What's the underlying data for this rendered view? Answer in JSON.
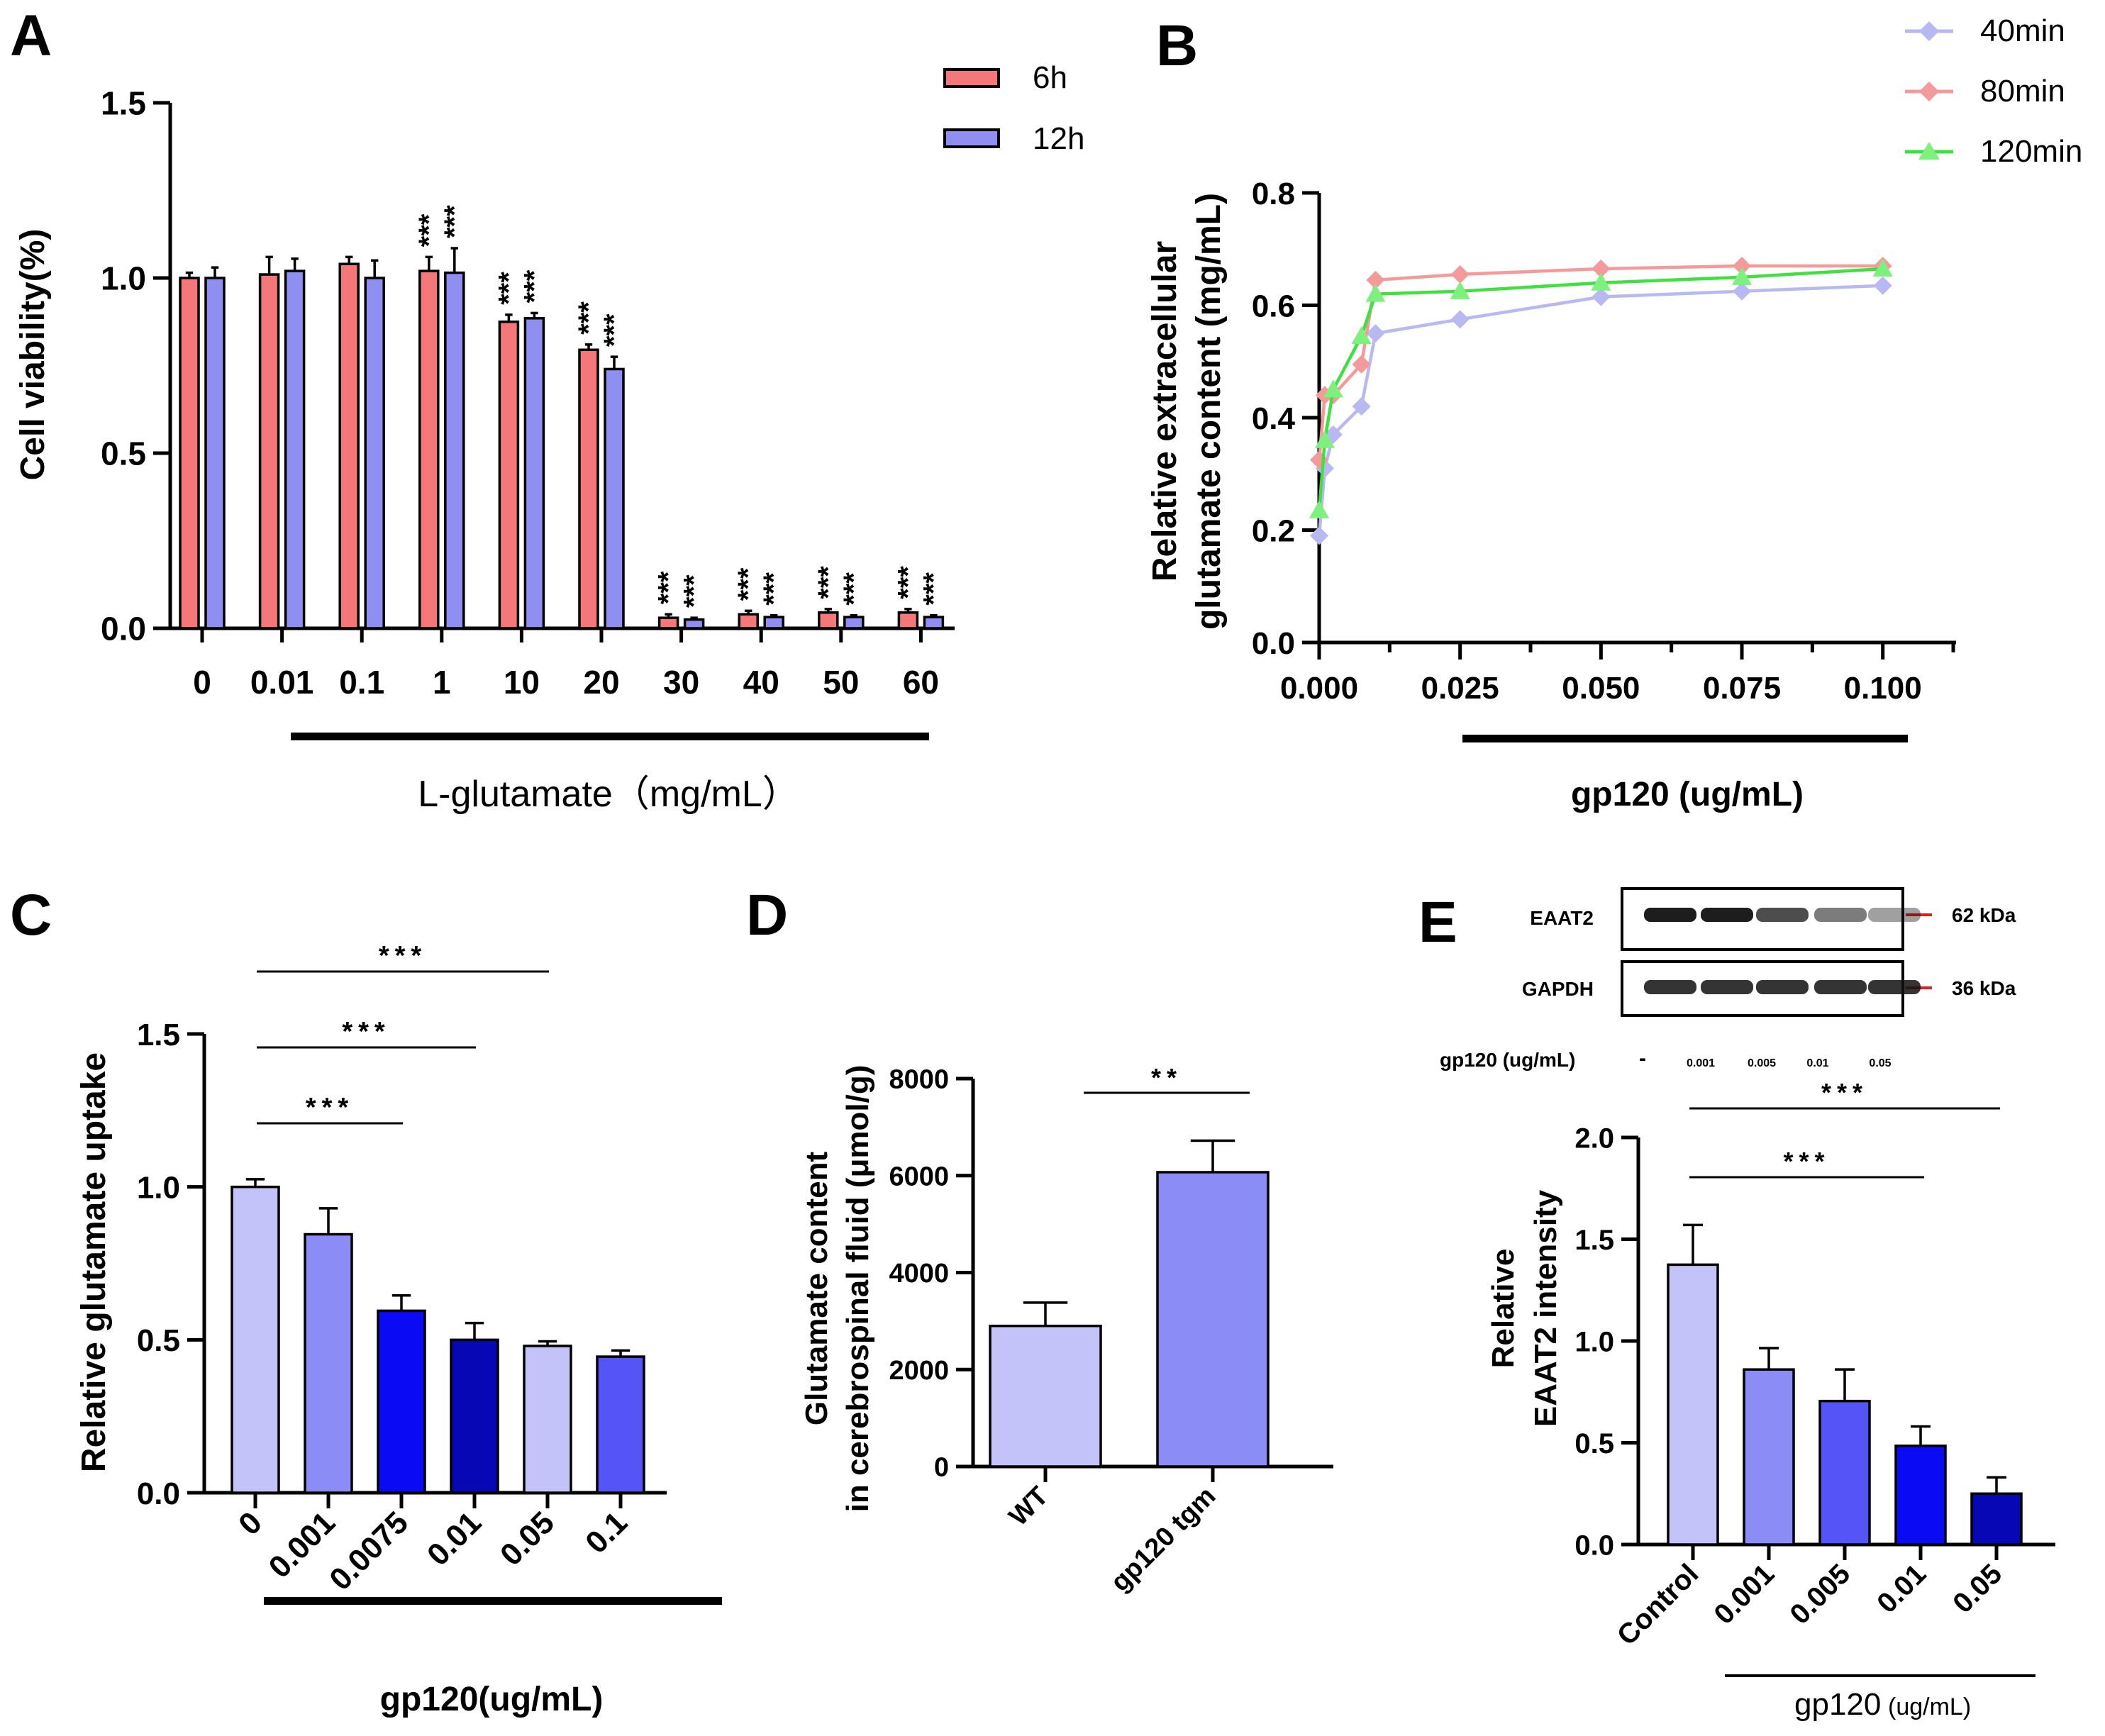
{
  "panels": {
    "A": {
      "label": "A"
    },
    "B": {
      "label": "B"
    },
    "C": {
      "label": "C"
    },
    "D": {
      "label": "D"
    },
    "E": {
      "label": "E"
    }
  },
  "colors": {
    "red": "#f4777a",
    "lavender": "#8f8ff2",
    "lightLav": "#c3c3f9",
    "mid": "#8c8cf7",
    "blue": "#0a0af5",
    "dark": "#0707b5",
    "med": "#5454f7",
    "line40": "#b8b8f2",
    "line80": "#f59a9a",
    "line120": "#3fe03f"
  },
  "chart_data": [
    {
      "id": "A",
      "type": "bar",
      "categories": [
        "0",
        "0.01",
        "0.1",
        "1",
        "10",
        "20",
        "30",
        "40",
        "50",
        "60"
      ],
      "series": [
        {
          "name": "6h",
          "values": [
            1.0,
            1.01,
            1.04,
            1.02,
            0.875,
            0.795,
            0.03,
            0.04,
            0.045,
            0.045
          ],
          "errors": [
            0.015,
            0.05,
            0.02,
            0.04,
            0.02,
            0.015,
            0.01,
            0.01,
            0.01,
            0.01
          ]
        },
        {
          "name": "12h",
          "values": [
            1.0,
            1.02,
            1.0,
            1.015,
            0.885,
            0.74,
            0.025,
            0.032,
            0.032,
            0.032
          ],
          "errors": [
            0.03,
            0.035,
            0.05,
            0.07,
            0.015,
            0.035,
            0.005,
            0.005,
            0.005,
            0.005
          ]
        }
      ],
      "significance": [
        "",
        "",
        "",
        "***",
        "***",
        "***",
        "***",
        "***",
        "***",
        "***"
      ],
      "ylabel": "Cell viability(%)",
      "xlabel": "L-glutamate（mg/mL）",
      "ylim": [
        0,
        1.5
      ],
      "yticks": [
        "0.0",
        "0.5",
        "1.0",
        "1.5"
      ]
    },
    {
      "id": "B",
      "type": "line",
      "x": [
        0.0,
        0.001,
        0.0025,
        0.0075,
        0.01,
        0.025,
        0.05,
        0.075,
        0.1
      ],
      "series": [
        {
          "name": "40min",
          "values": [
            0.19,
            0.31,
            0.37,
            0.42,
            0.55,
            0.575,
            0.615,
            0.625,
            0.635
          ]
        },
        {
          "name": "80min",
          "values": [
            0.325,
            0.44,
            0.44,
            0.495,
            0.645,
            0.655,
            0.665,
            0.67,
            0.67
          ]
        },
        {
          "name": "120min",
          "values": [
            0.235,
            0.36,
            0.45,
            0.545,
            0.62,
            0.625,
            0.64,
            0.65,
            0.665
          ]
        }
      ],
      "ylabel_line1": "Relative extracellular",
      "ylabel_line2": "glutamate content (mg/mL)",
      "xlabel": "gp120 (ug/mL)",
      "xlim": [
        0,
        0.113
      ],
      "ylim": [
        0,
        0.8
      ],
      "xticks": [
        "0.000",
        "0.025",
        "0.050",
        "0.075",
        "0.100"
      ],
      "yticks": [
        "0.0",
        "0.2",
        "0.4",
        "0.6",
        "0.8"
      ]
    },
    {
      "id": "C",
      "type": "bar",
      "categories": [
        "0",
        "0.001",
        "0.0075",
        "0.01",
        "0.05",
        "0.1"
      ],
      "values": [
        1.0,
        0.845,
        0.595,
        0.5,
        0.48,
        0.445
      ],
      "errors": [
        0.025,
        0.085,
        0.05,
        0.055,
        0.015,
        0.02
      ],
      "ylabel": "Relative glutamate uptake",
      "xlabel": "gp120(ug/mL)",
      "ylim": [
        0,
        1.5
      ],
      "yticks": [
        "0.0",
        "0.5",
        "1.0",
        "1.5"
      ],
      "significance": [
        {
          "from": 0,
          "to": 4,
          "label": "***"
        },
        {
          "from": 0,
          "to": 3,
          "label": "***"
        },
        {
          "from": 0,
          "to": 2,
          "label": "***"
        }
      ]
    },
    {
      "id": "D",
      "type": "bar",
      "categories": [
        "WT",
        "gp120 tgm"
      ],
      "values": [
        2900,
        6070
      ],
      "errors": [
        480,
        650
      ],
      "ylabel_line1": "Glutamate content",
      "ylabel_line2": "in cerebrospinal fluid (μmol/g)",
      "ylim": [
        0,
        8000
      ],
      "yticks": [
        "0",
        "2000",
        "4000",
        "6000",
        "8000"
      ],
      "significance": [
        {
          "from": 0,
          "to": 1,
          "label": "**"
        }
      ]
    },
    {
      "id": "E",
      "type": "bar",
      "categories": [
        "Control",
        "0.001",
        "0.005",
        "0.01",
        "0.05"
      ],
      "values": [
        1.375,
        0.86,
        0.705,
        0.485,
        0.25
      ],
      "errors": [
        0.195,
        0.105,
        0.155,
        0.095,
        0.08
      ],
      "ylabel_line1": "Relative",
      "ylabel_line2": "EAAT2 intensity",
      "xlabel": "gp120",
      "xlabel_unit": "(ug/mL)",
      "ylim": [
        0,
        2.0
      ],
      "yticks": [
        "0.0",
        "0.5",
        "1.0",
        "1.5",
        "2.0"
      ],
      "significance": [
        {
          "from": 0,
          "to": 4,
          "label": "***"
        },
        {
          "from": 0,
          "to": 3,
          "label": "***"
        }
      ],
      "blot": {
        "rows": [
          {
            "name": "EAAT2",
            "kda": "62 kDa"
          },
          {
            "name": "GAPDH",
            "kda": "36 kDa"
          }
        ],
        "treatment_label": "gp120 (ug/mL)",
        "lanes": [
          "-",
          "0.001",
          "0.005",
          "0.01",
          "0.05"
        ]
      }
    }
  ]
}
